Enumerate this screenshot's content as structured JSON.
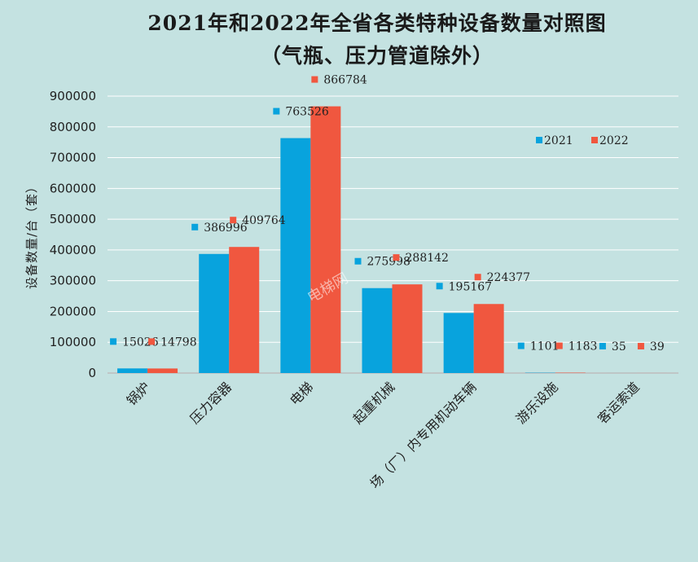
{
  "chart_data": {
    "type": "bar",
    "title": "2021年和2022年全省各类特种设备数量对照图",
    "subtitle": "（气瓶、压力管道除外）",
    "ylabel": "设备数量/台（套）",
    "xlabel": "",
    "ylim": [
      0,
      900000
    ],
    "yticks": [
      "0",
      "100000",
      "200000",
      "300000",
      "400000",
      "500000",
      "600000",
      "700000",
      "800000",
      "900000"
    ],
    "grid": true,
    "legend_position": "top-right",
    "categories": [
      "锅炉",
      "压力容器",
      "电梯",
      "起重机械",
      "场（厂）内专用机动车辆",
      "游乐设施",
      "客运索道"
    ],
    "series": [
      {
        "name": "2021",
        "color": "#08a3dd",
        "values": [
          15026,
          386996,
          763526,
          275998,
          195167,
          1101,
          35
        ]
      },
      {
        "name": "2022",
        "color": "#f0573f",
        "values": [
          14798,
          409764,
          866784,
          288142,
          224377,
          1183,
          39
        ]
      }
    ]
  },
  "watermark": "电梯网"
}
